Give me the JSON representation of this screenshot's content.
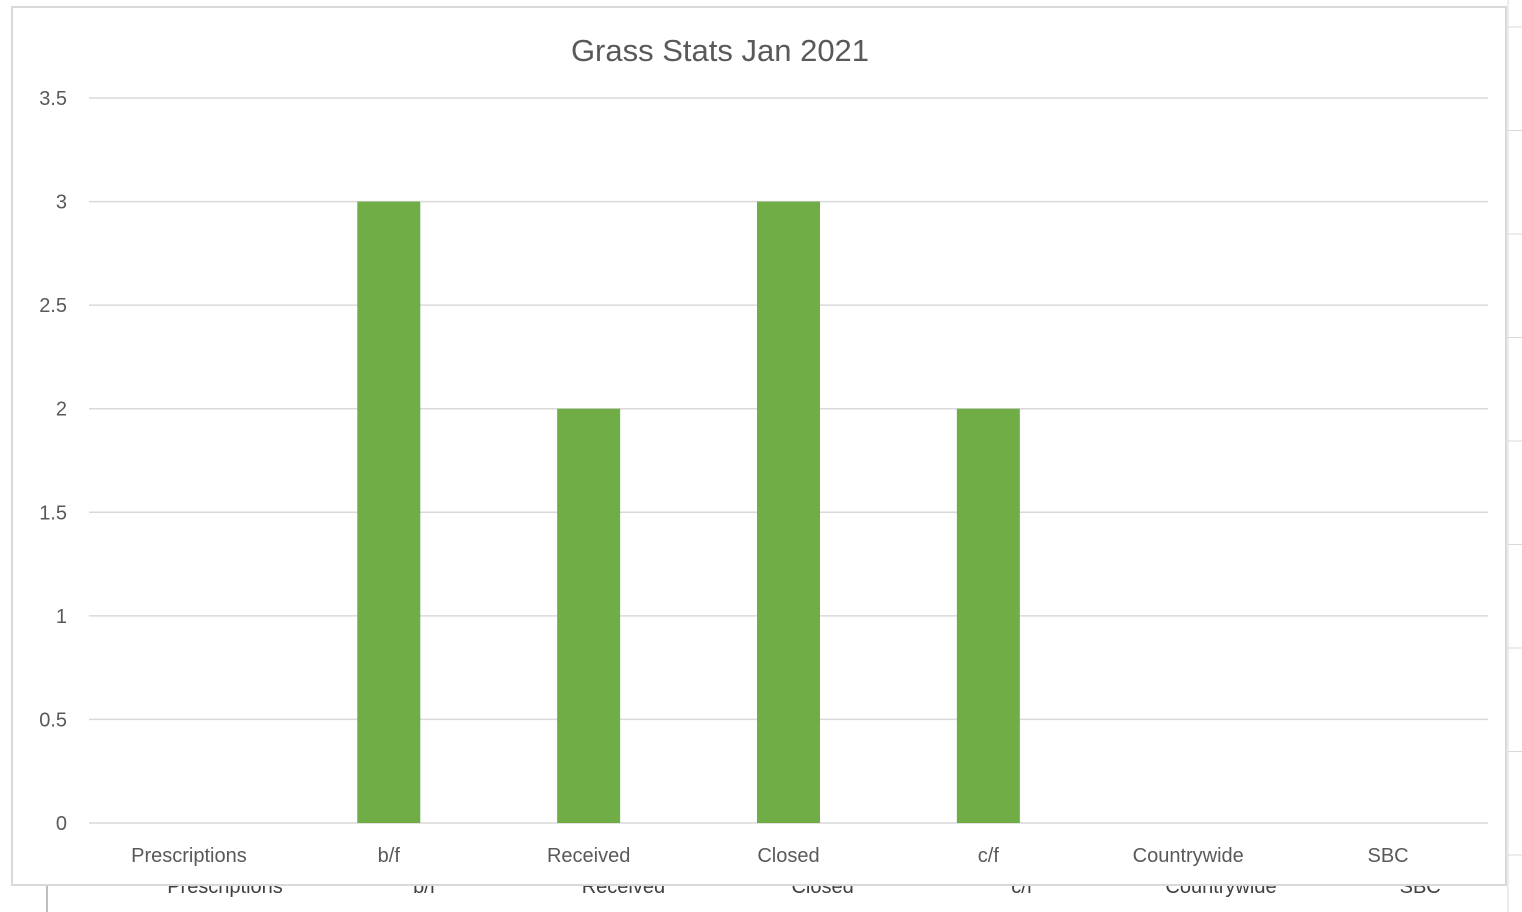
{
  "chart_data": {
    "type": "bar",
    "title": "Grass Stats Jan 2021",
    "xlabel": "",
    "ylabel": "",
    "categories": [
      "Prescriptions",
      "b/f",
      "Received",
      "Closed",
      "c/f",
      "Countrywide",
      "SBC"
    ],
    "values": [
      0,
      3,
      2,
      3,
      2,
      0,
      0
    ],
    "ylim": [
      0,
      3.5
    ],
    "yticks": [
      "0",
      "0.5",
      "1",
      "1.5",
      "2",
      "2.5",
      "3",
      "3.5"
    ],
    "grid": true,
    "legend": "none",
    "bar_color": "#70ad47"
  },
  "background_sheet": {
    "category_labels": [
      "Prescriptions",
      "b/f",
      "Received",
      "Closed",
      "c/f",
      "Countrywide",
      "SBC"
    ]
  }
}
